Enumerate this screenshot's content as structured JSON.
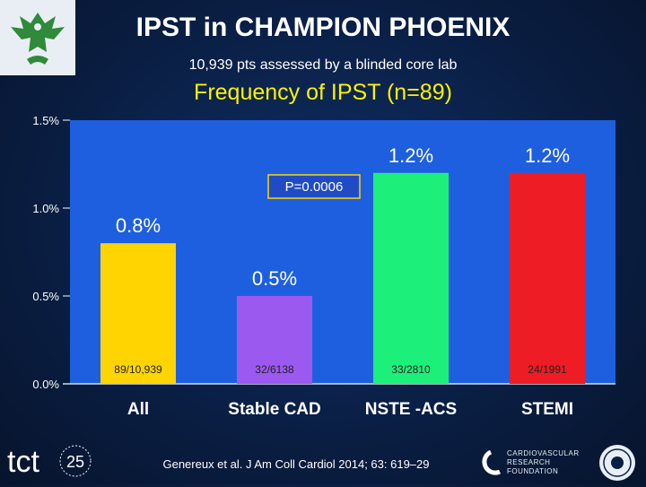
{
  "header": {
    "title": "IPST in CHAMPION PHOENIX",
    "subtitle": "10,939 pts assessed by a blinded core lab",
    "heading": "Frequency of IPST (n=89)"
  },
  "chart_data": {
    "type": "bar",
    "categories": [
      "All",
      "Stable CAD",
      "NSTE -ACS",
      "STEMI"
    ],
    "values": [
      0.8,
      0.5,
      1.2,
      1.2
    ],
    "value_labels": [
      "0.8%",
      "0.5%",
      "1.2%",
      "1.2%"
    ],
    "count_labels": [
      "89/10,939",
      "32/6138",
      "33/2810",
      "24/1991"
    ],
    "colors": [
      "#ffd400",
      "#9b59f0",
      "#1cf07a",
      "#ee1c25"
    ],
    "ylim": [
      0,
      1.5
    ],
    "yticks": [
      0,
      0.5,
      1.0,
      1.5
    ],
    "ytick_labels": [
      "0.0%",
      "0.5%",
      "1.0%",
      "1.5%"
    ],
    "annotation": "P=0.0006",
    "grid": false,
    "plot_background": "#1e5fe0"
  },
  "footer": {
    "citation": "Genereux et al. J Am Coll Cardiol 2014; 63: 619–29",
    "tct_logo_text": "tct",
    "tct_logo_number": "25",
    "crf_logo_lines": [
      "CARDIOVASCULAR",
      "RESEARCH",
      "FOUNDATION"
    ]
  }
}
